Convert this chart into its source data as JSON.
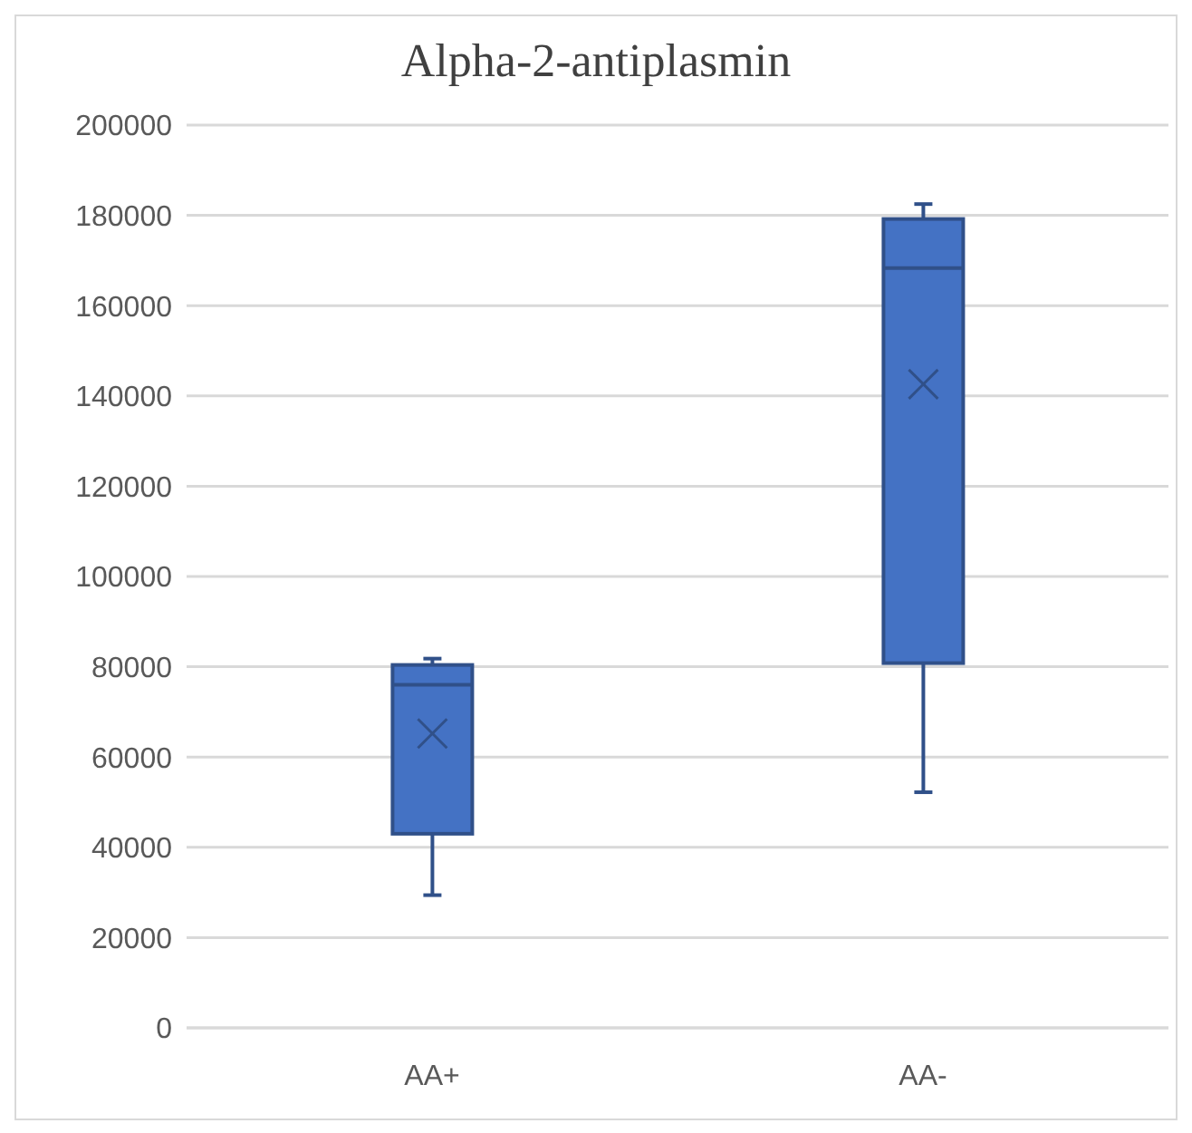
{
  "chart_data": {
    "type": "box",
    "title": "Alpha-2-antiplasmin",
    "categories": [
      "AA+",
      "AA-"
    ],
    "series": [
      {
        "color": "#4472c4",
        "boxes": [
          {
            "low": 29400,
            "q1": 43000,
            "median": 76000,
            "q3": 80400,
            "high": 81800,
            "mean": 65200
          },
          {
            "low": 52200,
            "q1": 80800,
            "median": 168300,
            "q3": 179200,
            "high": 182500,
            "mean": 142600
          }
        ]
      }
    ],
    "ylim": [
      0,
      200000
    ],
    "yticks": [
      0,
      20000,
      40000,
      60000,
      80000,
      100000,
      120000,
      140000,
      160000,
      180000,
      200000
    ],
    "grid": "y",
    "legend": false
  }
}
